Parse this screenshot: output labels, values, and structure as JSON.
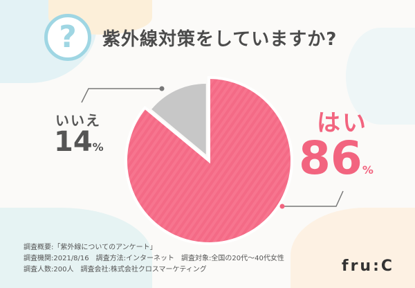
{
  "title": "紫外線対策をしていますか?",
  "icon": "question-circle-icon",
  "colors": {
    "yes": "#f7758f",
    "no": "#c7c7c7",
    "accent": "#f2647f",
    "icon": "#9fd6e3"
  },
  "chart_data": {
    "type": "pie",
    "title": "紫外線対策をしていますか?",
    "categories": [
      "はい",
      "いいえ"
    ],
    "values": [
      86,
      14
    ],
    "unit": "%",
    "labels": [
      {
        "name": "はい",
        "value": "86",
        "unit": "%"
      },
      {
        "name": "いいえ",
        "value": "14",
        "unit": "%"
      }
    ]
  },
  "notes": [
    "調査概要:「紫外線についてのアンケート」",
    "調査機関:2021/8/16　調査方法:インターネット　調査対象:全国の20代～40代女性",
    "調査人数:200人　調査会社:株式会社クロスマーケティング"
  ],
  "logo": "fru:C"
}
